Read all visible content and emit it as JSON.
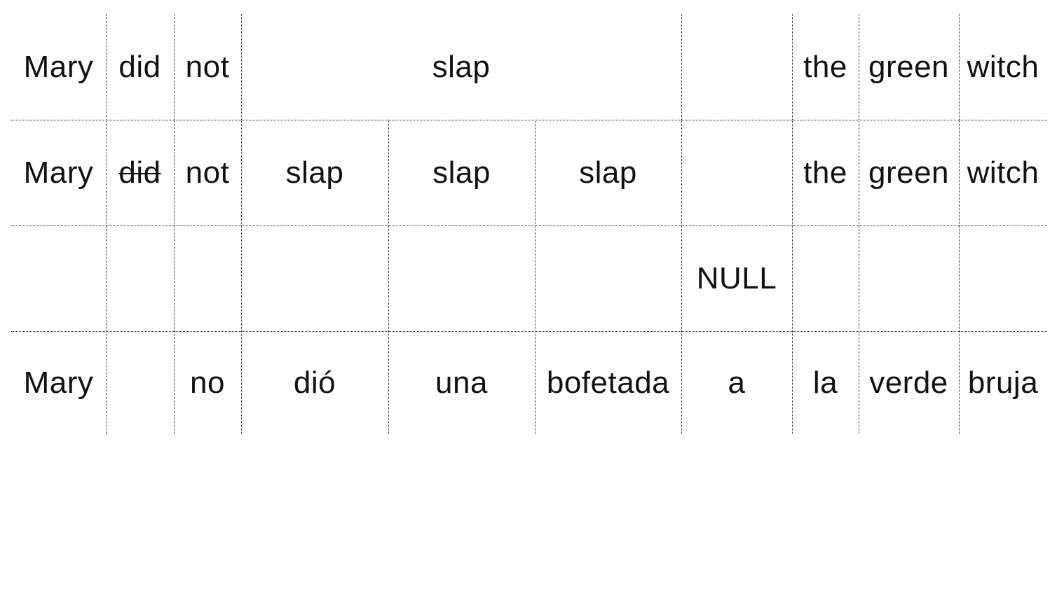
{
  "rows": [
    {
      "id": "english-source",
      "cells": [
        {
          "text": "Mary"
        },
        {
          "text": "did"
        },
        {
          "text": "not"
        },
        {
          "text": "slap",
          "span": 3
        },
        {
          "text": ""
        },
        {
          "text": "the"
        },
        {
          "text": "green"
        },
        {
          "text": "witch"
        }
      ]
    },
    {
      "id": "fertility",
      "cells": [
        {
          "text": "Mary"
        },
        {
          "text": "did",
          "struck": true
        },
        {
          "text": "not"
        },
        {
          "text": "slap"
        },
        {
          "text": "slap"
        },
        {
          "text": "slap"
        },
        {
          "text": ""
        },
        {
          "text": "the"
        },
        {
          "text": "green"
        },
        {
          "text": "witch"
        }
      ]
    },
    {
      "id": "null-insertion",
      "cells": [
        {
          "text": ""
        },
        {
          "text": ""
        },
        {
          "text": ""
        },
        {
          "text": ""
        },
        {
          "text": ""
        },
        {
          "text": ""
        },
        {
          "text": "NULL"
        },
        {
          "text": ""
        },
        {
          "text": ""
        },
        {
          "text": ""
        }
      ]
    },
    {
      "id": "spanish-target",
      "cells": [
        {
          "text": "Mary"
        },
        {
          "text": ""
        },
        {
          "text": "no"
        },
        {
          "text": "dió"
        },
        {
          "text": "una"
        },
        {
          "text": "bofetada"
        },
        {
          "text": "a"
        },
        {
          "text": "la"
        },
        {
          "text": "verde"
        },
        {
          "text": "bruja"
        }
      ]
    }
  ]
}
